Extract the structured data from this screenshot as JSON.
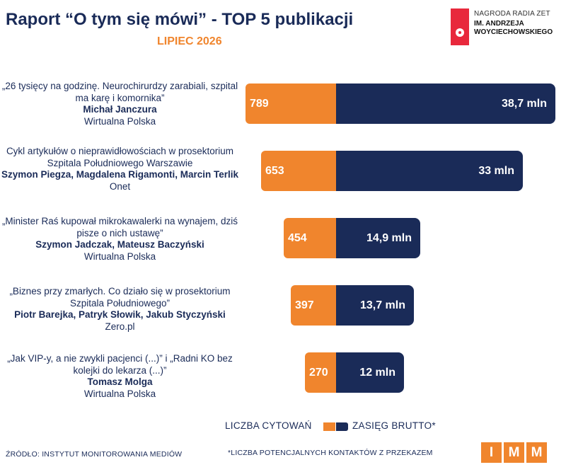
{
  "header": {
    "title": "Raport “O tym się mówi” - TOP 5 publikacji",
    "subtitle": "LIPIEC 2026"
  },
  "logo": {
    "line1": "NAGRODA RADIA ZET",
    "line2": "IM. ANDRZEJA",
    "line3": "WOYCIECHOWSKIEGO",
    "color": "#e8283c"
  },
  "colors": {
    "citations": "#f0852d",
    "reach": "#1a2b58",
    "text": "#1a2b58"
  },
  "chart_data": {
    "type": "bar",
    "orientation": "horizontal",
    "categories": [
      {
        "headline": "„26 tysięcy na godzinę. Neurochirurdzy zarabiali, szpital ma karę i komornika”",
        "authors": "Michał Janczura",
        "outlet": "Wirtualna Polska"
      },
      {
        "headline": "Cykl artykułów o nieprawidłowościach w prosektorium Szpitala Południowego Warszawie",
        "authors": "Szymon Piegza, Magdalena Rigamonti, Marcin Terlik",
        "outlet": "Onet"
      },
      {
        "headline": "„Minister Raś kupował mikrokawalerki na wynajem, dziś pisze o nich ustawę”",
        "authors": "Szymon Jadczak, Mateusz Baczyński",
        "outlet": "Wirtualna Polska"
      },
      {
        "headline": "„Biznes przy zmarłych. Co działo się w prosektorium Szpitala Południowego”",
        "authors": "Piotr Barejka, Patryk Słowik, Jakub Styczyński",
        "outlet": "Zero.pl"
      },
      {
        "headline": "„Jak VIP-y, a nie zwykli pacjenci (...)” i „Radni KO bez kolejki do lekarza (...)”",
        "authors": "Tomasz Molga",
        "outlet": "Wirtualna Polska"
      }
    ],
    "series": [
      {
        "name": "LICZBA CYTOWAŃ",
        "values": [
          789,
          653,
          454,
          397,
          270
        ],
        "labels": [
          "789",
          "653",
          "454",
          "397",
          "270"
        ]
      },
      {
        "name": "ZASIĘG BRUTTO*",
        "values": [
          38.7,
          33,
          14.9,
          13.7,
          12
        ],
        "labels": [
          "38,7 mln",
          "33 mln",
          "14,9 mln",
          "13,7 mln",
          "12 mln"
        ]
      }
    ],
    "legend_position": "bottom",
    "grid": false
  },
  "legend": {
    "citations_label": "LICZBA CYTOWAŃ",
    "reach_label": "ZASIĘG BRUTTO*"
  },
  "footer": {
    "source": "ŹRÓDŁO: INSTYTUT MONITOROWANIA MEDIÓW",
    "footnote": "*LICZBA POTENCJALNYCH KONTAKTÓW Z PRZEKAZEM",
    "imm_letters": [
      "I",
      "M",
      "M"
    ]
  }
}
